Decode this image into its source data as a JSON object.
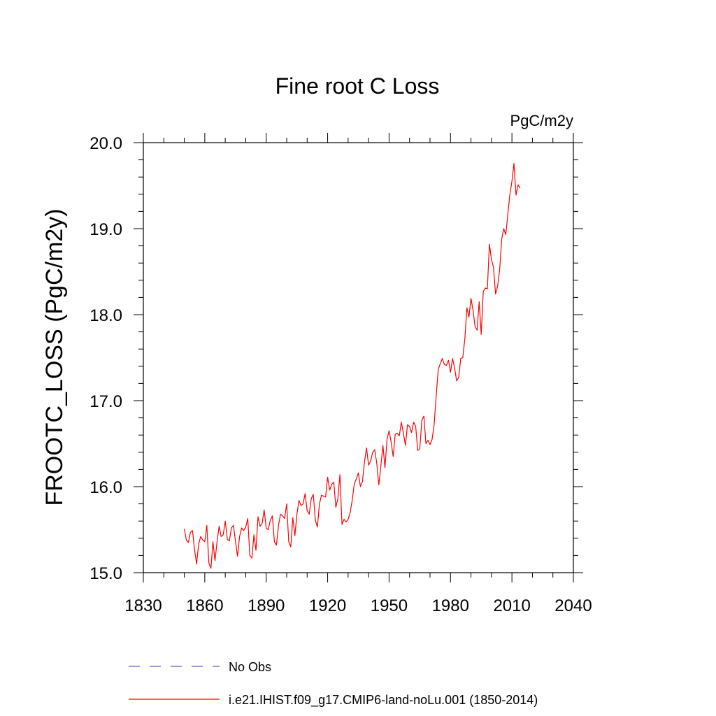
{
  "chart_data": {
    "type": "line",
    "title": "Fine root C Loss",
    "units_label": "PgC/m2y",
    "ylabel": "FROOTC_LOSS  (PgC/m2y)",
    "xlabel": "",
    "xlim": [
      1830,
      2040
    ],
    "ylim": [
      15.0,
      20.0
    ],
    "x_ticks": [
      1830,
      1860,
      1890,
      1920,
      1950,
      1980,
      2010,
      2040
    ],
    "x_tick_labels": [
      "1830",
      "1860",
      "1890",
      "1920",
      "1950",
      "1980",
      "2010",
      "2040"
    ],
    "y_ticks": [
      15.0,
      16.0,
      17.0,
      18.0,
      19.0,
      20.0
    ],
    "y_tick_labels": [
      "15.0",
      "16.0",
      "17.0",
      "18.0",
      "19.0",
      "20.0"
    ],
    "grid": false,
    "legend_position": "bottom",
    "legend": [
      {
        "label": "No Obs",
        "color": "#6a5acd",
        "style": "dashed"
      },
      {
        "label": "i.e21.IHIST.f09_g17.CMIP6-land-noLu.001 (1850-2014)",
        "color": "#ff0000",
        "style": "solid"
      }
    ],
    "series": [
      {
        "color": "#ff0000",
        "x_start": 1850,
        "x_step": 1,
        "values": [
          15.51,
          15.38,
          15.35,
          15.47,
          15.49,
          15.27,
          15.1,
          15.33,
          15.42,
          15.38,
          15.36,
          15.55,
          15.11,
          15.05,
          15.36,
          15.14,
          15.36,
          15.54,
          15.42,
          15.44,
          15.6,
          15.39,
          15.37,
          15.52,
          15.55,
          15.36,
          15.19,
          15.42,
          15.52,
          15.49,
          15.53,
          15.63,
          15.2,
          15.17,
          15.44,
          15.26,
          15.65,
          15.54,
          15.57,
          15.73,
          15.52,
          15.5,
          15.61,
          15.66,
          15.36,
          15.32,
          15.55,
          15.68,
          15.66,
          15.63,
          15.8,
          15.36,
          15.3,
          15.64,
          15.43,
          15.68,
          15.84,
          15.78,
          15.8,
          15.92,
          15.72,
          15.68,
          15.86,
          15.91,
          15.61,
          15.53,
          15.8,
          15.9,
          15.89,
          15.88,
          16.11,
          15.96,
          16.03,
          16.05,
          15.76,
          15.86,
          16.14,
          15.56,
          15.62,
          15.59,
          15.62,
          15.7,
          15.84,
          16.03,
          16.09,
          16.16,
          16.0,
          16.06,
          16.29,
          16.45,
          16.25,
          16.3,
          16.4,
          16.43,
          16.27,
          16.02,
          16.24,
          16.48,
          16.22,
          16.55,
          16.65,
          16.52,
          16.35,
          16.61,
          16.62,
          16.59,
          16.75,
          16.62,
          16.48,
          16.72,
          16.7,
          16.63,
          16.75,
          16.7,
          16.42,
          16.44,
          16.77,
          16.82,
          16.5,
          16.54,
          16.49,
          16.55,
          16.72,
          17.05,
          17.36,
          17.43,
          17.49,
          17.42,
          17.41,
          17.47,
          17.33,
          17.49,
          17.38,
          17.23,
          17.27,
          17.49,
          17.5,
          17.72,
          18.08,
          17.97,
          18.19,
          18.05,
          17.86,
          17.82,
          18.15,
          17.77,
          18.27,
          18.31,
          18.3,
          18.82,
          18.64,
          18.55,
          18.24,
          18.33,
          18.52,
          18.88,
          19.0,
          18.93,
          19.17,
          19.4,
          19.55,
          19.76,
          19.39,
          19.51,
          19.47
        ]
      }
    ]
  }
}
